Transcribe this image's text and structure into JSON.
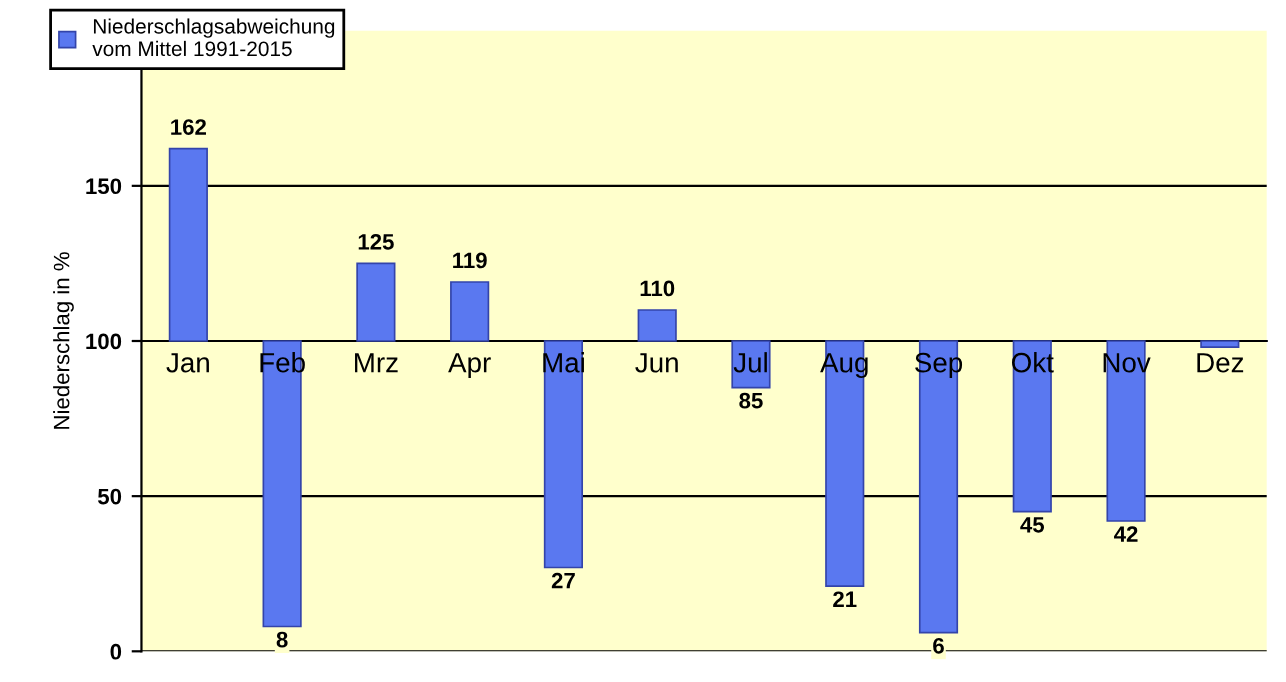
{
  "chart_data": {
    "type": "bar",
    "categories": [
      "Jan",
      "Feb",
      "Mrz",
      "Apr",
      "Mai",
      "Jun",
      "Jul",
      "Aug",
      "Sep",
      "Okt",
      "Nov",
      "Dez"
    ],
    "series": [
      {
        "name": "Niederschlagsabweichung\nvom Mittel 1991-2015",
        "color": "#5a78f0",
        "base": [
          100,
          100,
          100,
          100,
          100,
          100,
          100,
          100,
          100,
          100,
          100,
          100
        ],
        "values": [
          62,
          -92,
          25,
          19,
          -73,
          10,
          -15,
          -79,
          -94,
          -55,
          -58,
          -2
        ],
        "value_labels": [
          "162",
          "8",
          "125",
          "119",
          "27",
          "110",
          "85",
          "21",
          "6",
          "45",
          "42",
          null
        ]
      }
    ],
    "ylabel": "Niederschlag in %",
    "ylim": [
      0,
      200
    ],
    "yticks": [
      0,
      50,
      100,
      150
    ],
    "grid": "y",
    "legend": "top left"
  }
}
